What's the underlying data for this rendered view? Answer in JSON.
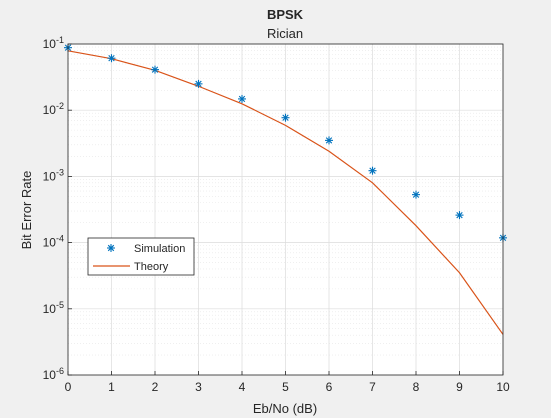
{
  "chart_data": {
    "type": "line",
    "title": "BPSK",
    "subtitle": "Rician",
    "xlabel": "Eb/No (dB)",
    "ylabel": "Bit Error Rate",
    "xlim": [
      0,
      10
    ],
    "ylim": [
      1e-06,
      0.1
    ],
    "yscale": "log",
    "xticks": [
      0,
      1,
      2,
      3,
      4,
      5,
      6,
      7,
      8,
      9,
      10
    ],
    "yticks": [
      {
        "value": 1e-06,
        "base": "10",
        "exp": "-6"
      },
      {
        "value": 1e-05,
        "base": "10",
        "exp": "-5"
      },
      {
        "value": 0.0001,
        "base": "10",
        "exp": "-4"
      },
      {
        "value": 0.001,
        "base": "10",
        "exp": "-3"
      },
      {
        "value": 0.01,
        "base": "10",
        "exp": "-2"
      },
      {
        "value": 0.1,
        "base": "10",
        "exp": "-1"
      }
    ],
    "grid": true,
    "minor_grid": true,
    "legend_position": "left",
    "series": [
      {
        "name": "Simulation",
        "style": "markers",
        "marker": "asterisk",
        "color": "#0072bd",
        "x": [
          0,
          1,
          2,
          3,
          4,
          5,
          6,
          7,
          8,
          9,
          10
        ],
        "y": [
          0.088,
          0.061,
          0.041,
          0.025,
          0.0148,
          0.0077,
          0.0035,
          0.00122,
          0.00053,
          0.00026,
          0.000118
        ]
      },
      {
        "name": "Theory",
        "style": "line",
        "color": "#d95319",
        "x": [
          0,
          1,
          2,
          3,
          4,
          5,
          6,
          7,
          8,
          9,
          10
        ],
        "y": [
          0.079,
          0.06,
          0.04,
          0.023,
          0.0125,
          0.0059,
          0.0024,
          0.0008,
          0.00018,
          3.5e-05,
          4.1e-06
        ]
      }
    ]
  }
}
